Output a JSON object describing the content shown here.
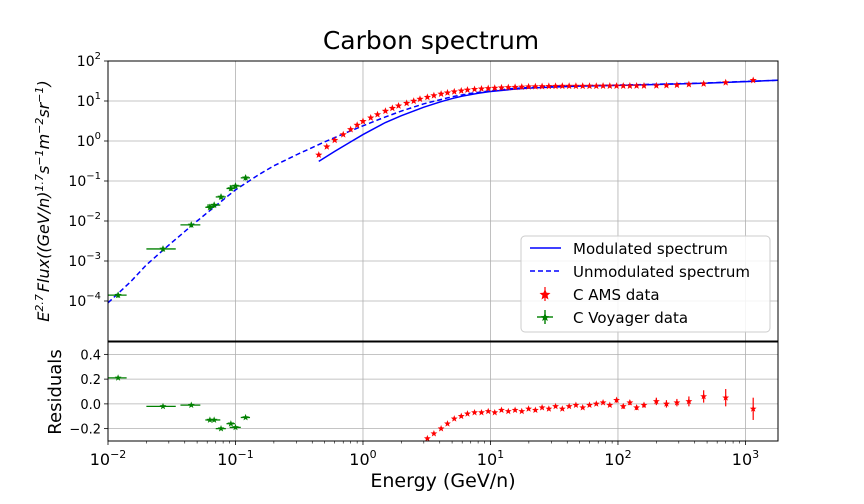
{
  "chart_data": [
    {
      "type": "scatter",
      "panel": "main",
      "title": "Carbon spectrum",
      "ylabel": "E^{2.7} Flux((GeV/n)^{1.7} s^{-1} m^{-2} sr^{-1})",
      "ylabel_parts": {
        "e": "E",
        "e_sup": "2.7",
        "flux": "Flux((GeV/n)",
        "a_sup": "1.7",
        "s": "s",
        "s_sup": "−1",
        "m": "m",
        "m_sup": "−2",
        "sr": "sr",
        "sr_sup": "−1",
        "close": ")"
      },
      "x_scale": "log",
      "y_scale": "log",
      "xlim": [
        0.01,
        1800
      ],
      "ylim": [
        1e-05,
        100
      ],
      "grid": true,
      "legend_placement": "lower-right",
      "yticks": [
        {
          "v": 0.0001,
          "m": "10",
          "e": "−4"
        },
        {
          "v": 0.001,
          "m": "10",
          "e": "−3"
        },
        {
          "v": 0.01,
          "m": "10",
          "e": "−2"
        },
        {
          "v": 0.1,
          "m": "10",
          "e": "−1"
        },
        {
          "v": 1,
          "m": "10",
          "e": "0"
        },
        {
          "v": 10,
          "m": "10",
          "e": "1"
        },
        {
          "v": 100,
          "m": "10",
          "e": "2"
        }
      ],
      "series": [
        {
          "name": "Modulated spectrum",
          "kind": "line",
          "style": "solid",
          "color": "#0000ff",
          "x": [
            0.45,
            0.6,
            0.8,
            1,
            1.5,
            2,
            3,
            4,
            5,
            6,
            8,
            10,
            15,
            20,
            30,
            50,
            100,
            200,
            500,
            1000,
            1800
          ],
          "y": [
            0.31,
            0.55,
            0.95,
            1.45,
            2.9,
            4.3,
            7.0,
            9.4,
            11.5,
            13.2,
            15.6,
            17.3,
            19.6,
            21.0,
            22.3,
            23.5,
            24.6,
            25.8,
            28.0,
            30.5,
            33.0
          ]
        },
        {
          "name": "Unmodulated spectrum",
          "kind": "line",
          "style": "dashed",
          "color": "#0000ff",
          "x": [
            0.01,
            0.015,
            0.02,
            0.03,
            0.05,
            0.07,
            0.1,
            0.15,
            0.2,
            0.3,
            0.5,
            0.7,
            1,
            1.5,
            2,
            3,
            5,
            7,
            10,
            15,
            20,
            30,
            50,
            100,
            200,
            500,
            1000,
            1800
          ],
          "y": [
            9e-05,
            0.0003,
            0.0008,
            0.0025,
            0.01,
            0.024,
            0.06,
            0.14,
            0.24,
            0.45,
            0.95,
            1.5,
            2.4,
            4.0,
            5.6,
            8.5,
            12.8,
            15.5,
            18.0,
            20.5,
            21.8,
            23.0,
            24.0,
            25.0,
            26.2,
            28.3,
            30.8,
            33.0
          ]
        },
        {
          "name": "C AMS data",
          "kind": "points",
          "color": "#ff0000",
          "x": [
            0.45,
            0.52,
            0.6,
            0.7,
            0.8,
            0.9,
            1.0,
            1.15,
            1.3,
            1.5,
            1.7,
            1.9,
            2.2,
            2.5,
            2.8,
            3.2,
            3.6,
            4.1,
            4.6,
            5.2,
            5.9,
            6.6,
            7.5,
            8.5,
            9.6,
            10.8,
            12.2,
            13.8,
            15.6,
            17.6,
            19.9,
            22.5,
            25.4,
            28.7,
            32.4,
            36.6,
            41.4,
            46.8,
            52.9,
            59.8,
            67.6,
            76.4,
            86.3,
            97.5,
            110,
            124,
            140,
            160,
            200,
            240,
            290,
            360,
            470,
            700,
            1150
          ],
          "y": [
            0.45,
            0.72,
            1.05,
            1.45,
            1.95,
            2.5,
            3.1,
            3.8,
            4.6,
            5.6,
            6.6,
            7.6,
            8.8,
            10.0,
            11.2,
            12.5,
            13.7,
            15.0,
            16.1,
            17.1,
            18.0,
            18.9,
            19.6,
            20.2,
            20.7,
            21.1,
            21.5,
            21.9,
            22.2,
            22.5,
            22.8,
            23.0,
            23.2,
            23.4,
            23.5,
            23.6,
            23.6,
            23.7,
            23.7,
            23.7,
            23.7,
            23.8,
            23.8,
            23.8,
            23.8,
            23.9,
            24.0,
            24.0,
            24.2,
            24.5,
            25.0,
            26.0,
            27.0,
            29.0,
            33.0
          ]
        },
        {
          "name": "C Voyager data",
          "kind": "points",
          "color": "#008000",
          "x": [
            0.012,
            0.027,
            0.045,
            0.063,
            0.068,
            0.077,
            0.092,
            0.1,
            0.12
          ],
          "y": [
            0.00014,
            0.002,
            0.008,
            0.022,
            0.025,
            0.04,
            0.065,
            0.075,
            0.12
          ],
          "xerr_lo": [
            0.01,
            0.02,
            0.037,
            0.058,
            0.06,
            0.07,
            0.085,
            0.09,
            0.11
          ],
          "xerr_hi": [
            0.014,
            0.034,
            0.053,
            0.068,
            0.076,
            0.084,
            0.099,
            0.11,
            0.13
          ]
        }
      ]
    },
    {
      "type": "scatter",
      "panel": "residuals",
      "xlabel": "Energy (GeV/n)",
      "ylabel": "Residuals",
      "x_scale": "log",
      "xlim": [
        0.01,
        1800
      ],
      "ylim": [
        -0.3,
        0.5
      ],
      "grid": true,
      "yticks": [
        {
          "v": 0.4,
          "label": "0.4"
        },
        {
          "v": 0.2,
          "label": "0.2"
        },
        {
          "v": 0.0,
          "label": "0.0"
        },
        {
          "v": -0.2,
          "label": "−0.2"
        }
      ],
      "xticks": [
        {
          "v": 0.01,
          "m": "10",
          "e": "−2"
        },
        {
          "v": 0.1,
          "m": "10",
          "e": "−1"
        },
        {
          "v": 1,
          "m": "10",
          "e": "0"
        },
        {
          "v": 10,
          "m": "10",
          "e": "1"
        },
        {
          "v": 100,
          "m": "10",
          "e": "2"
        },
        {
          "v": 1000,
          "m": "10",
          "e": "3"
        }
      ],
      "series": [
        {
          "name": "C AMS data",
          "kind": "points",
          "color": "#ff0000",
          "x": [
            3.2,
            3.6,
            4.1,
            4.6,
            5.2,
            5.9,
            6.6,
            7.5,
            8.5,
            9.6,
            10.8,
            12.2,
            13.8,
            15.6,
            17.6,
            19.9,
            22.5,
            25.4,
            28.7,
            32.4,
            36.6,
            41.4,
            46.8,
            52.9,
            59.8,
            67.6,
            76.4,
            86.3,
            97.5,
            110,
            124,
            140,
            160,
            200,
            240,
            290,
            360,
            470,
            700,
            1150
          ],
          "y": [
            -0.28,
            -0.24,
            -0.2,
            -0.16,
            -0.12,
            -0.1,
            -0.08,
            -0.07,
            -0.07,
            -0.06,
            -0.07,
            -0.05,
            -0.06,
            -0.05,
            -0.06,
            -0.04,
            -0.05,
            -0.03,
            -0.04,
            -0.02,
            -0.04,
            -0.02,
            -0.01,
            -0.03,
            -0.01,
            0.0,
            0.01,
            -0.01,
            0.03,
            -0.02,
            0.01,
            -0.03,
            -0.01,
            0.02,
            0.0,
            0.01,
            0.02,
            0.06,
            0.05,
            -0.04
          ],
          "yerr": [
            0.01,
            0.01,
            0.01,
            0.01,
            0.01,
            0.01,
            0.01,
            0.01,
            0.01,
            0.01,
            0.01,
            0.01,
            0.01,
            0.01,
            0.01,
            0.01,
            0.01,
            0.01,
            0.01,
            0.01,
            0.01,
            0.01,
            0.01,
            0.01,
            0.01,
            0.01,
            0.01,
            0.01,
            0.02,
            0.02,
            0.02,
            0.02,
            0.02,
            0.03,
            0.03,
            0.03,
            0.04,
            0.05,
            0.07,
            0.09
          ]
        },
        {
          "name": "C Voyager data",
          "kind": "points",
          "color": "#008000",
          "x": [
            0.012,
            0.027,
            0.045,
            0.063,
            0.068,
            0.077,
            0.092,
            0.1,
            0.12
          ],
          "y": [
            0.21,
            -0.02,
            -0.01,
            -0.13,
            -0.13,
            -0.2,
            -0.16,
            -0.19,
            -0.11
          ],
          "xerr_lo": [
            0.01,
            0.02,
            0.037,
            0.058,
            0.06,
            0.07,
            0.085,
            0.09,
            0.11
          ],
          "xerr_hi": [
            0.014,
            0.034,
            0.053,
            0.068,
            0.076,
            0.084,
            0.099,
            0.11,
            0.13
          ]
        }
      ]
    }
  ]
}
